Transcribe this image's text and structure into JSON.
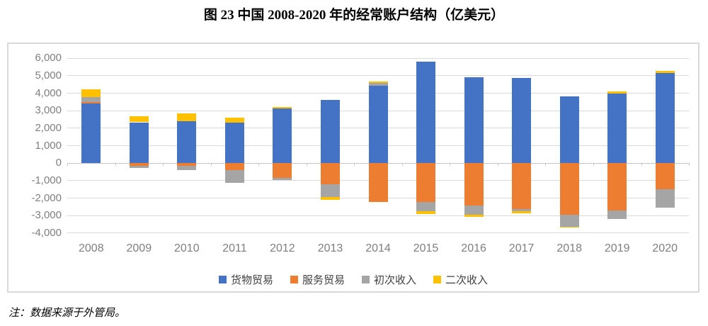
{
  "page": {
    "title": "图 23 中国 2008-2020 年的经常账户结构（亿美元）",
    "note": "注：数据来源于外管局。"
  },
  "chart_data": {
    "type": "bar",
    "stacked": true,
    "title": "图 23 中国 2008-2020 年的经常账户结构（亿美元）",
    "unit": "亿美元",
    "categories": [
      "2008",
      "2009",
      "2010",
      "2011",
      "2012",
      "2013",
      "2014",
      "2015",
      "2016",
      "2017",
      "2018",
      "2019",
      "2020"
    ],
    "series": [
      {
        "name": "货物贸易",
        "color": "#4472C4",
        "values": [
          3400,
          2320,
          2370,
          2300,
          3110,
          3610,
          4410,
          5800,
          4890,
          4840,
          3810,
          3960,
          5150
        ]
      },
      {
        "name": "服务贸易",
        "color": "#ED7D31",
        "values": [
          60,
          -160,
          -170,
          -420,
          -880,
          -1220,
          -2230,
          -2240,
          -2430,
          -2640,
          -2975,
          -2730,
          -1510
        ]
      },
      {
        "name": "初次收入",
        "color": "#A5A5A5",
        "values": [
          310,
          -120,
          -240,
          -740,
          -110,
          -740,
          160,
          -520,
          -540,
          -135,
          -675,
          -490,
          -1055
        ]
      },
      {
        "name": "二次收入",
        "color": "#FFC000",
        "values": [
          430,
          330,
          470,
          270,
          80,
          -180,
          80,
          -190,
          -140,
          -135,
          -70,
          110,
          120
        ]
      }
    ],
    "ylim": [
      -4000,
      6000
    ],
    "ytick_step": 1000,
    "y_tick_labels": [
      "6,000",
      "5,000",
      "4,000",
      "3,000",
      "2,000",
      "1,000",
      "0",
      "-1,000",
      "-2,000",
      "-3,000",
      "-4,000"
    ],
    "grid": true,
    "legend_position": "bottom-inside",
    "colors": {
      "gridline": "#D9D9D9",
      "zero_axis": "#C6C6C6",
      "axis_text": "#7F7F7F",
      "legend_text": "#404040",
      "frame_border": "#D9D9D9"
    }
  }
}
